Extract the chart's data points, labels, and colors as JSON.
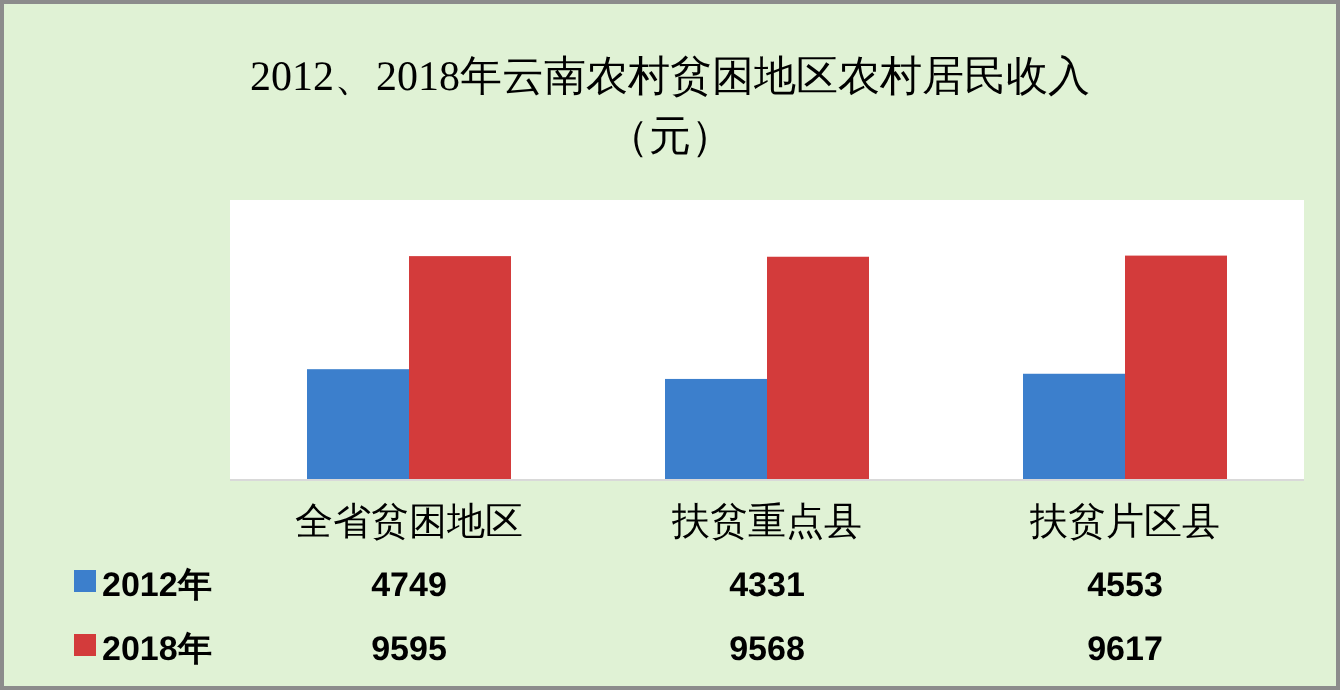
{
  "chart_data": {
    "type": "bar",
    "title": "2012、2018年云南农村贫困地区农村居民收入",
    "subtitle": "（元）",
    "categories": [
      "全省贫困地区",
      "扶贫重点县",
      "扶贫片区县"
    ],
    "series": [
      {
        "name": "2012年",
        "color": "#3c7fcc",
        "values": [
          4749,
          4331,
          4553
        ]
      },
      {
        "name": "2018年",
        "color": "#d33b3b",
        "values": [
          9595,
          9568,
          9617
        ]
      }
    ],
    "ylim": [
      0,
      12000
    ],
    "tick_labels": "x",
    "data_labels": true,
    "legend": "bottom left",
    "grid": false
  }
}
